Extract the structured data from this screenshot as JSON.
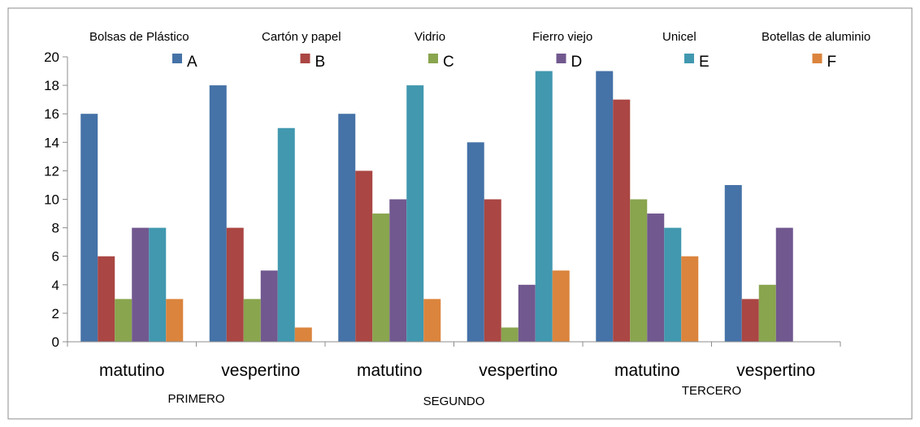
{
  "chart_data": {
    "type": "bar",
    "title": "",
    "xlabel": "",
    "ylabel": "",
    "ylim": [
      0,
      20
    ],
    "yticks": [
      0,
      2,
      4,
      6,
      8,
      10,
      12,
      14,
      16,
      18,
      20
    ],
    "grid": false,
    "legend_position": "top",
    "categories": [
      "matutino",
      "vespertino",
      "matutino",
      "vespertino",
      "matutino",
      "vespertino"
    ],
    "groups": [
      {
        "label": "PRIMERO",
        "categories": [
          0,
          1
        ]
      },
      {
        "label": "SEGUNDO",
        "categories": [
          2,
          3
        ]
      },
      {
        "label": "TERCERO",
        "categories": [
          4,
          5
        ]
      }
    ],
    "material_labels": [
      "Bolsas de Plástico",
      "Cartón y papel",
      "Vidrio",
      "Fierro viejo",
      "Unicel",
      "Botellas de aluminio"
    ],
    "series": [
      {
        "name": "A",
        "color": "#4572a7",
        "values": [
          16,
          18,
          16,
          14,
          19,
          11
        ]
      },
      {
        "name": "B",
        "color": "#aa4643",
        "values": [
          6,
          8,
          12,
          10,
          17,
          3
        ]
      },
      {
        "name": "C",
        "color": "#89a54e",
        "values": [
          3,
          3,
          9,
          1,
          10,
          4
        ]
      },
      {
        "name": "D",
        "color": "#71588f",
        "values": [
          8,
          5,
          10,
          4,
          9,
          8
        ]
      },
      {
        "name": "E",
        "color": "#4198af",
        "values": [
          8,
          15,
          18,
          19,
          8,
          0
        ]
      },
      {
        "name": "F",
        "color": "#db843d",
        "values": [
          3,
          1,
          3,
          5,
          6,
          0
        ]
      }
    ]
  }
}
